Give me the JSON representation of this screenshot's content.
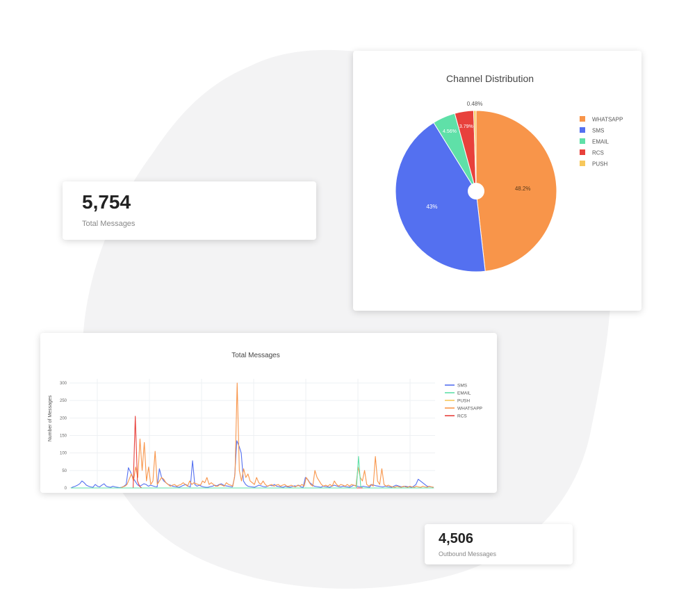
{
  "kpis": {
    "total": {
      "value": "5,754",
      "label": "Total Messages"
    },
    "outbound": {
      "value": "4,506",
      "label": "Outbound Messages"
    }
  },
  "colors": {
    "whatsapp": "#f8954a",
    "sms": "#5470f0",
    "email": "#5fe0a8",
    "rcs": "#e8413c",
    "push": "#f7c85c"
  },
  "chart_data": [
    {
      "type": "pie",
      "title": "Channel Distribution",
      "hole": true,
      "legend_position": "right",
      "slices": [
        {
          "name": "WHATSAPP",
          "value": 48.2,
          "label": "48.2%",
          "color": "#f8954a"
        },
        {
          "name": "SMS",
          "value": 43.0,
          "label": "43%",
          "color": "#5470f0"
        },
        {
          "name": "EMAIL",
          "value": 4.56,
          "label": "4.56%",
          "color": "#5fe0a8"
        },
        {
          "name": "RCS",
          "value": 3.79,
          "label": "3.79%",
          "color": "#e8413c"
        },
        {
          "name": "PUSH",
          "value": 0.48,
          "label": "0.48%",
          "color": "#f7c85c"
        }
      ]
    },
    {
      "type": "line",
      "title": "Total Messages",
      "ylabel": "Number of Messages",
      "ylim": [
        0,
        300
      ],
      "yticks": [
        0,
        50,
        100,
        150,
        200,
        250,
        300
      ],
      "grid": true,
      "legend_position": "right",
      "series": [
        {
          "name": "SMS",
          "color": "#5470f0",
          "values": [
            0,
            3,
            5,
            8,
            12,
            20,
            15,
            8,
            5,
            3,
            2,
            10,
            5,
            3,
            8,
            12,
            5,
            3,
            2,
            5,
            3,
            2,
            1,
            2,
            5,
            10,
            58,
            45,
            30,
            20,
            10,
            5,
            8,
            12,
            10,
            5,
            8,
            6,
            4,
            3,
            55,
            30,
            20,
            15,
            10,
            8,
            5,
            4,
            3,
            2,
            5,
            8,
            10,
            5,
            3,
            78,
            10,
            5,
            8,
            5,
            3,
            2,
            2,
            4,
            5,
            8,
            6,
            10,
            12,
            8,
            6,
            5,
            4,
            3,
            30,
            135,
            120,
            100,
            20,
            10,
            5,
            4,
            3,
            2,
            5,
            8,
            6,
            4,
            3,
            5,
            8,
            6,
            10,
            5,
            4,
            3,
            2,
            5,
            3,
            2,
            4,
            6,
            5,
            8,
            3,
            2,
            30,
            25,
            15,
            10,
            5,
            4,
            3,
            2,
            5,
            4,
            3,
            2,
            5,
            8,
            6,
            4,
            3,
            5,
            4,
            3,
            2,
            5,
            8,
            6,
            4,
            3,
            5,
            4,
            3,
            2,
            10,
            8,
            6,
            5,
            4,
            3,
            5,
            4,
            3,
            2,
            5,
            8,
            6,
            4,
            3,
            5,
            4,
            3,
            2,
            5,
            10,
            25,
            20,
            15,
            10,
            5,
            4,
            3,
            2
          ]
        },
        {
          "name": "EMAIL",
          "color": "#5fe0a8",
          "values": [
            0,
            0,
            0,
            0,
            0,
            0,
            0,
            0,
            0,
            0,
            0,
            0,
            0,
            0,
            0,
            0,
            0,
            0,
            0,
            0,
            0,
            0,
            0,
            0,
            0,
            0,
            0,
            0,
            0,
            0,
            0,
            0,
            0,
            0,
            0,
            0,
            0,
            0,
            0,
            0,
            0,
            0,
            0,
            0,
            0,
            0,
            0,
            0,
            0,
            0,
            0,
            0,
            0,
            0,
            0,
            0,
            0,
            0,
            0,
            0,
            0,
            0,
            0,
            0,
            0,
            0,
            0,
            0,
            0,
            0,
            0,
            0,
            0,
            0,
            0,
            0,
            0,
            0,
            0,
            0,
            0,
            0,
            0,
            0,
            0,
            0,
            0,
            0,
            0,
            0,
            0,
            0,
            0,
            0,
            0,
            0,
            0,
            0,
            0,
            0,
            0,
            0,
            0,
            0,
            0,
            0,
            0,
            0,
            0,
            0,
            0,
            0,
            0,
            0,
            0,
            0,
            0,
            0,
            0,
            0,
            0,
            0,
            0,
            0,
            0,
            0,
            0,
            0,
            0,
            0,
            0,
            0,
            0,
            0,
            90,
            5,
            0,
            0,
            0,
            0,
            0,
            0,
            0,
            0,
            0,
            0,
            0,
            0,
            0,
            0,
            0,
            0,
            0,
            0,
            0,
            0,
            0,
            0,
            0,
            0,
            0,
            0,
            0,
            0,
            0,
            0,
            0,
            0,
            0,
            0
          ]
        },
        {
          "name": "PUSH",
          "color": "#f7c85c",
          "values": [
            0,
            0,
            0,
            0,
            0,
            0,
            0,
            0,
            0,
            0,
            0,
            0,
            0,
            0,
            0,
            0,
            0,
            0,
            0,
            0,
            0,
            0,
            0,
            0,
            0,
            0,
            0,
            0,
            0,
            0,
            0,
            0,
            0,
            0,
            0,
            0,
            0,
            0,
            0,
            0,
            0,
            0,
            0,
            0,
            0,
            0,
            0,
            0,
            0,
            0,
            0,
            0,
            0,
            0,
            0,
            0,
            0,
            0,
            0,
            0,
            0,
            0,
            0,
            0,
            0,
            0,
            0,
            0,
            0,
            0,
            0,
            0,
            0,
            0,
            0,
            0,
            0,
            0,
            0,
            0,
            0,
            0,
            0,
            0,
            0,
            0,
            0,
            0,
            0,
            0,
            0,
            0,
            0,
            0,
            0,
            0,
            0,
            0,
            0,
            0,
            0,
            0,
            0,
            0,
            0,
            0,
            0,
            0,
            0,
            0,
            0,
            0,
            0,
            0,
            0,
            0,
            0,
            0,
            0,
            0,
            0,
            0,
            0,
            0,
            0,
            0,
            0,
            0,
            0,
            0,
            0,
            0,
            0,
            0,
            0,
            0,
            0,
            0,
            0,
            0,
            0,
            0,
            0,
            0,
            0,
            0,
            0,
            0,
            0,
            0,
            0,
            0,
            0,
            0,
            0,
            0,
            0,
            0,
            0,
            0,
            0,
            0,
            0,
            0,
            0,
            0,
            0,
            0,
            0,
            0
          ]
        },
        {
          "name": "WHATSAPP",
          "color": "#f8954a",
          "values": [
            0,
            0,
            0,
            0,
            0,
            0,
            0,
            0,
            0,
            0,
            0,
            0,
            0,
            0,
            0,
            0,
            0,
            0,
            0,
            0,
            0,
            0,
            0,
            0,
            3,
            5,
            10,
            25,
            40,
            20,
            60,
            30,
            140,
            50,
            130,
            20,
            60,
            10,
            20,
            105,
            10,
            20,
            30,
            25,
            15,
            10,
            5,
            8,
            10,
            5,
            8,
            10,
            15,
            10,
            5,
            20,
            10,
            15,
            12,
            10,
            8,
            20,
            15,
            30,
            10,
            15,
            10,
            5,
            5,
            10,
            8,
            5,
            15,
            10,
            8,
            5,
            40,
            300,
            50,
            20,
            55,
            30,
            40,
            20,
            15,
            10,
            30,
            15,
            10,
            20,
            10,
            5,
            8,
            10,
            5,
            8,
            10,
            5,
            8,
            10,
            5,
            5,
            8,
            5,
            3,
            8,
            5,
            10,
            5,
            30,
            20,
            10,
            5,
            50,
            30,
            20,
            10,
            5,
            8,
            5,
            10,
            5,
            20,
            10,
            5,
            10,
            8,
            5,
            10,
            5,
            10,
            8,
            5,
            60,
            30,
            20,
            50,
            10,
            5,
            10,
            5,
            90,
            20,
            10,
            55,
            10,
            5,
            8,
            5,
            3,
            2,
            5,
            3,
            2,
            5,
            3,
            2,
            5,
            3,
            2,
            5,
            3,
            2,
            5,
            3,
            2,
            5,
            3,
            2
          ]
        },
        {
          "name": "RCS",
          "color": "#e8413c",
          "values": [
            0,
            0,
            0,
            0,
            0,
            0,
            0,
            0,
            0,
            0,
            0,
            0,
            0,
            0,
            0,
            0,
            0,
            0,
            0,
            0,
            0,
            0,
            0,
            0,
            0,
            0,
            0,
            0,
            0,
            0,
            205,
            20,
            5,
            0,
            0,
            0,
            0,
            0,
            0,
            0,
            0,
            0,
            0,
            0,
            0,
            0,
            0,
            0,
            0,
            0,
            0,
            0,
            0,
            0,
            0,
            0,
            0,
            0,
            0,
            0,
            0,
            0,
            0,
            0,
            0,
            0,
            0,
            0,
            0,
            0,
            0,
            0,
            0,
            0,
            0,
            0,
            0,
            0,
            0,
            0,
            0,
            0,
            0,
            0,
            0,
            0,
            0,
            0,
            0,
            0,
            0,
            0,
            0,
            0,
            0,
            0,
            0,
            0,
            0,
            0,
            0,
            0,
            0,
            0,
            0,
            0,
            0,
            0,
            0,
            0,
            0,
            0,
            0,
            0,
            0,
            0,
            0,
            0,
            0,
            0,
            0,
            0,
            0,
            0,
            0,
            0,
            0,
            0,
            0,
            0,
            0,
            0,
            0,
            0,
            0,
            0,
            0,
            0,
            0,
            0,
            0,
            0,
            0,
            0,
            0,
            0,
            0,
            0,
            0,
            0,
            0,
            0,
            0,
            0,
            0,
            0,
            0,
            0,
            0,
            0,
            0,
            0,
            0,
            0,
            0,
            0,
            0,
            0,
            0,
            0
          ]
        }
      ]
    }
  ]
}
